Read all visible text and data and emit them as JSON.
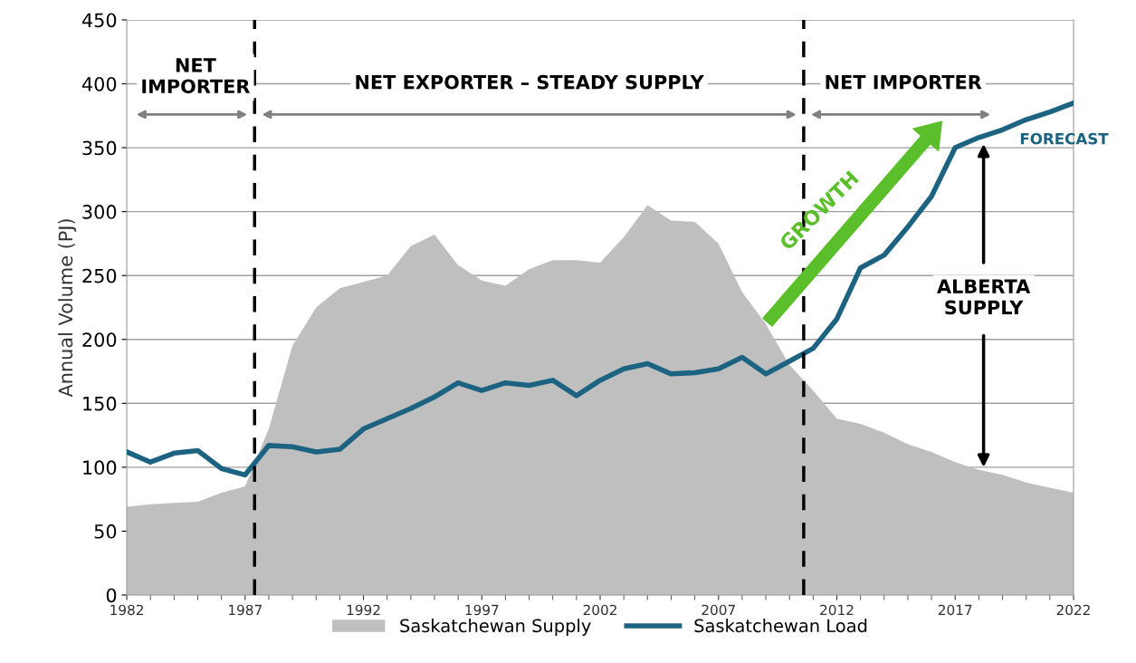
{
  "chart_data": {
    "type": "area",
    "ylabel": "Annual Volume (PJ)",
    "x": [
      1982,
      1983,
      1984,
      1985,
      1986,
      1987,
      1988,
      1989,
      1990,
      1991,
      1992,
      1993,
      1994,
      1995,
      1996,
      1997,
      1998,
      1999,
      2000,
      2001,
      2002,
      2003,
      2004,
      2005,
      2006,
      2007,
      2008,
      2009,
      2010,
      2011,
      2012,
      2013,
      2014,
      2015,
      2016,
      2017,
      2018,
      2019,
      2020,
      2021,
      2022
    ],
    "series": [
      {
        "name": "Saskatchewan Supply",
        "color": "#bfbfbf",
        "values": [
          69,
          71,
          72,
          73,
          80,
          85,
          130,
          195,
          225,
          240,
          245,
          250,
          273,
          282,
          258,
          246,
          242,
          255,
          262,
          262,
          260,
          280,
          305,
          293,
          292,
          275,
          237,
          212,
          180,
          160,
          138,
          134,
          127,
          118,
          112,
          104,
          98,
          94,
          88,
          84,
          80
        ]
      },
      {
        "name": "Saskatchewan Load",
        "type": "line",
        "color": "#1b6381",
        "values": [
          112,
          104,
          111,
          113,
          99,
          94,
          117,
          116,
          112,
          114,
          130,
          138,
          146,
          155,
          166,
          160,
          166,
          164,
          168,
          156,
          168,
          177,
          181,
          173,
          174,
          177,
          186,
          173,
          183,
          193,
          216,
          256,
          266,
          288,
          312,
          350,
          358,
          364,
          372,
          378,
          385
        ]
      }
    ],
    "xlim": [
      1982,
      2022
    ],
    "xticks": [
      1982,
      1987,
      1992,
      1997,
      2002,
      2007,
      2012,
      2017,
      2022
    ],
    "ylim": [
      0,
      450
    ],
    "yticks": [
      0,
      50,
      100,
      150,
      200,
      250,
      300,
      350,
      400,
      450
    ],
    "grid": "y",
    "legend": "bottom",
    "ref_lines": [
      {
        "axis": "x",
        "value": 1987.4,
        "color": "#000000",
        "line_style": "dashed"
      },
      {
        "axis": "x",
        "value": 2010.6,
        "color": "#000000",
        "line_style": "dashed"
      }
    ],
    "annotations": [
      "NET\nIMPORTER",
      "NET EXPORTER – STEADY SUPPLY",
      "NET IMPORTER",
      "GROWTH",
      "FORECAST",
      "ALBERTA\nSUPPLY"
    ]
  }
}
